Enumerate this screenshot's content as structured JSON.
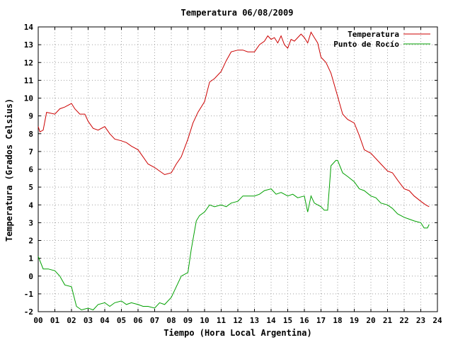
{
  "chart_data": {
    "type": "line",
    "title": "Temperatura 06/08/2009",
    "xlabel": "Tiempo (Hora Local Argentina)",
    "ylabel": "Temperatura (Grados Celsius)",
    "xlim": [
      0,
      24
    ],
    "ylim": [
      -2,
      14
    ],
    "grid": true,
    "legend_position": "top-right",
    "x_ticks": [
      "00",
      "01",
      "02",
      "03",
      "04",
      "05",
      "06",
      "07",
      "08",
      "09",
      "10",
      "11",
      "12",
      "13",
      "14",
      "15",
      "16",
      "17",
      "18",
      "19",
      "20",
      "21",
      "22",
      "23",
      "24"
    ],
    "y_ticks": [
      "-2",
      "-1",
      "0",
      "1",
      "2",
      "3",
      "4",
      "5",
      "6",
      "7",
      "8",
      "9",
      "10",
      "11",
      "12",
      "13",
      "14"
    ],
    "series": [
      {
        "name": "Temperatura",
        "color": "#cc0000",
        "x": [
          0,
          0.1,
          0.3,
          0.5,
          1.0,
          1.3,
          1.6,
          2.0,
          2.2,
          2.5,
          2.8,
          3.0,
          3.3,
          3.6,
          4.0,
          4.3,
          4.6,
          5.0,
          5.3,
          5.6,
          6.0,
          6.3,
          6.6,
          7.0,
          7.3,
          7.6,
          8.0,
          8.3,
          8.6,
          9.0,
          9.3,
          9.6,
          10.0,
          10.3,
          10.6,
          11.0,
          11.3,
          11.6,
          12.0,
          12.3,
          12.6,
          13.0,
          13.3,
          13.6,
          13.8,
          14.0,
          14.2,
          14.4,
          14.6,
          14.8,
          15.0,
          15.2,
          15.4,
          15.6,
          15.8,
          16.0,
          16.2,
          16.4,
          16.6,
          16.8,
          17.0,
          17.3,
          17.6,
          18.0,
          18.3,
          18.6,
          19.0,
          19.3,
          19.6,
          20.0,
          20.3,
          20.6,
          21.0,
          21.3,
          21.6,
          22.0,
          22.3,
          22.6,
          23.0,
          23.3,
          23.5
        ],
        "values": [
          8.4,
          8.1,
          8.2,
          9.2,
          9.1,
          9.4,
          9.5,
          9.7,
          9.4,
          9.1,
          9.1,
          8.7,
          8.3,
          8.2,
          8.4,
          8.0,
          7.7,
          7.6,
          7.5,
          7.3,
          7.1,
          6.7,
          6.3,
          6.1,
          5.9,
          5.7,
          5.8,
          6.3,
          6.7,
          7.7,
          8.6,
          9.2,
          9.8,
          10.9,
          11.1,
          11.5,
          12.1,
          12.6,
          12.7,
          12.7,
          12.6,
          12.6,
          13.0,
          13.2,
          13.5,
          13.3,
          13.4,
          13.1,
          13.5,
          13.0,
          12.8,
          13.3,
          13.2,
          13.4,
          13.6,
          13.4,
          13.1,
          13.7,
          13.4,
          13.1,
          12.3,
          12.0,
          11.4,
          10.1,
          9.1,
          8.8,
          8.6,
          7.9,
          7.1,
          6.9,
          6.6,
          6.3,
          5.9,
          5.8,
          5.4,
          4.9,
          4.8,
          4.5,
          4.2,
          4.0,
          3.9
        ]
      },
      {
        "name": "Punto de Rocío",
        "color": "#00a000",
        "x": [
          0,
          0.3,
          0.6,
          1.0,
          1.3,
          1.6,
          2.0,
          2.3,
          2.6,
          3.0,
          3.3,
          3.6,
          4.0,
          4.3,
          4.6,
          5.0,
          5.3,
          5.6,
          6.0,
          6.3,
          6.6,
          7.0,
          7.3,
          7.6,
          8.0,
          8.3,
          8.6,
          9.0,
          9.2,
          9.5,
          9.7,
          10.0,
          10.3,
          10.6,
          11.0,
          11.3,
          11.6,
          12.0,
          12.3,
          12.6,
          13.0,
          13.3,
          13.6,
          14.0,
          14.3,
          14.6,
          15.0,
          15.3,
          15.6,
          16.0,
          16.2,
          16.4,
          16.6,
          17.0,
          17.2,
          17.4,
          17.6,
          17.9,
          18.0,
          18.3,
          18.6,
          19.0,
          19.3,
          19.6,
          20.0,
          20.3,
          20.6,
          21.0,
          21.3,
          21.6,
          22.0,
          22.3,
          22.6,
          23.0,
          23.2,
          23.4,
          23.5
        ],
        "values": [
          1.1,
          0.4,
          0.4,
          0.3,
          0.0,
          -0.5,
          -0.6,
          -1.7,
          -1.9,
          -1.8,
          -1.9,
          -1.6,
          -1.5,
          -1.7,
          -1.5,
          -1.4,
          -1.6,
          -1.5,
          -1.6,
          -1.7,
          -1.7,
          -1.8,
          -1.5,
          -1.6,
          -1.2,
          -0.6,
          0.0,
          0.2,
          1.5,
          3.1,
          3.4,
          3.6,
          4.0,
          3.9,
          4.0,
          3.9,
          4.1,
          4.2,
          4.5,
          4.5,
          4.5,
          4.6,
          4.8,
          4.9,
          4.6,
          4.7,
          4.5,
          4.6,
          4.4,
          4.5,
          3.6,
          4.5,
          4.1,
          3.9,
          3.7,
          3.7,
          6.2,
          6.5,
          6.5,
          5.8,
          5.6,
          5.3,
          4.9,
          4.8,
          4.5,
          4.4,
          4.1,
          4.0,
          3.8,
          3.5,
          3.3,
          3.2,
          3.1,
          3.0,
          2.7,
          2.7,
          2.9
        ]
      }
    ]
  }
}
